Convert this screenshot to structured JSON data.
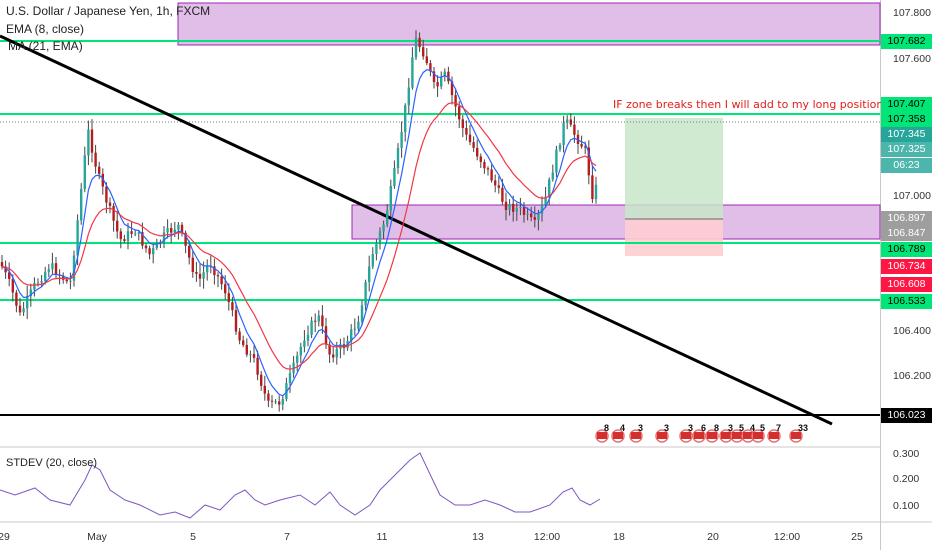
{
  "legend": {
    "symbol": "U.S. Dollar / Japanese Yen, 1h, FXCM",
    "ema": "EMA (8, close)",
    "ma": "MA (21, EMA)",
    "stdev": "STDEV (20, close)"
  },
  "annotation": "IF zone breaks then I will add to my long position.",
  "colors": {
    "green_line": "#00e676",
    "zone_fill": "#e1bee7",
    "zone_border": "#9c27b0",
    "trend": "#000000",
    "ema": "#2962ff",
    "ma": "#f23645",
    "bull": "#26a69a",
    "bear": "#b71c1c",
    "stdev": "#7e57c2"
  },
  "price_axis": [
    "107.800",
    "107.600",
    "107.000",
    "106.400",
    "106.200"
  ],
  "price_tags": [
    {
      "text": "107.682",
      "bg": "#00e676",
      "fg": "#000"
    },
    {
      "text": "107.407",
      "bg": "#00e676",
      "fg": "#000"
    },
    {
      "text": "107.358",
      "bg": "#00e676",
      "fg": "#000"
    },
    {
      "text": "107.345",
      "bg": "#26a69a",
      "fg": "#fff"
    },
    {
      "text": "107.325",
      "bg": "#4db6ac",
      "fg": "#fff"
    },
    {
      "text": "06:23",
      "bg": "#4db6ac",
      "fg": "#fff"
    },
    {
      "text": "106.897",
      "bg": "#9e9e9e",
      "fg": "#fff"
    },
    {
      "text": "106.847",
      "bg": "#9e9e9e",
      "fg": "#fff"
    },
    {
      "text": "106.789",
      "bg": "#00e676",
      "fg": "#000"
    },
    {
      "text": "106.734",
      "bg": "#ff1744",
      "fg": "#fff"
    },
    {
      "text": "106.608",
      "bg": "#ff1744",
      "fg": "#fff"
    },
    {
      "text": "106.533",
      "bg": "#00e676",
      "fg": "#000"
    },
    {
      "text": "106.023",
      "bg": "#000000",
      "fg": "#fff"
    }
  ],
  "stdev_axis": [
    "0.300",
    "0.200",
    "0.100"
  ],
  "time_axis": [
    "29",
    "May",
    "5",
    "7",
    "11",
    "13",
    "12:00",
    "18",
    "20",
    "12:00",
    "25"
  ],
  "events": [
    "8",
    "4",
    "3",
    "3",
    "3",
    "6",
    "8",
    "3",
    "5",
    "4",
    "5",
    "7",
    "33"
  ],
  "chart_data": {
    "type": "candlestick",
    "title": "U.S. Dollar / Japanese Yen, 1h, FXCM",
    "x_ticks": [
      "29",
      "May",
      "5",
      "7",
      "11",
      "13",
      "12:00",
      "18",
      "20",
      "12:00",
      "25"
    ],
    "price_ticks": [
      107.8,
      107.6,
      107.0,
      106.4,
      106.2
    ],
    "horizontal_levels": [
      107.682,
      107.407,
      107.358,
      106.789,
      106.533,
      106.023
    ],
    "zones": [
      {
        "name": "upper zone",
        "from": 107.682,
        "to": 107.85
      },
      {
        "name": "lower zone",
        "from": 106.78,
        "to": 106.93
      }
    ],
    "position": {
      "entry": 106.897,
      "target": 107.407,
      "stop": 106.734
    },
    "last_price": 107.345,
    "stdev_ticks": [
      0.3,
      0.2,
      0.1
    ]
  }
}
